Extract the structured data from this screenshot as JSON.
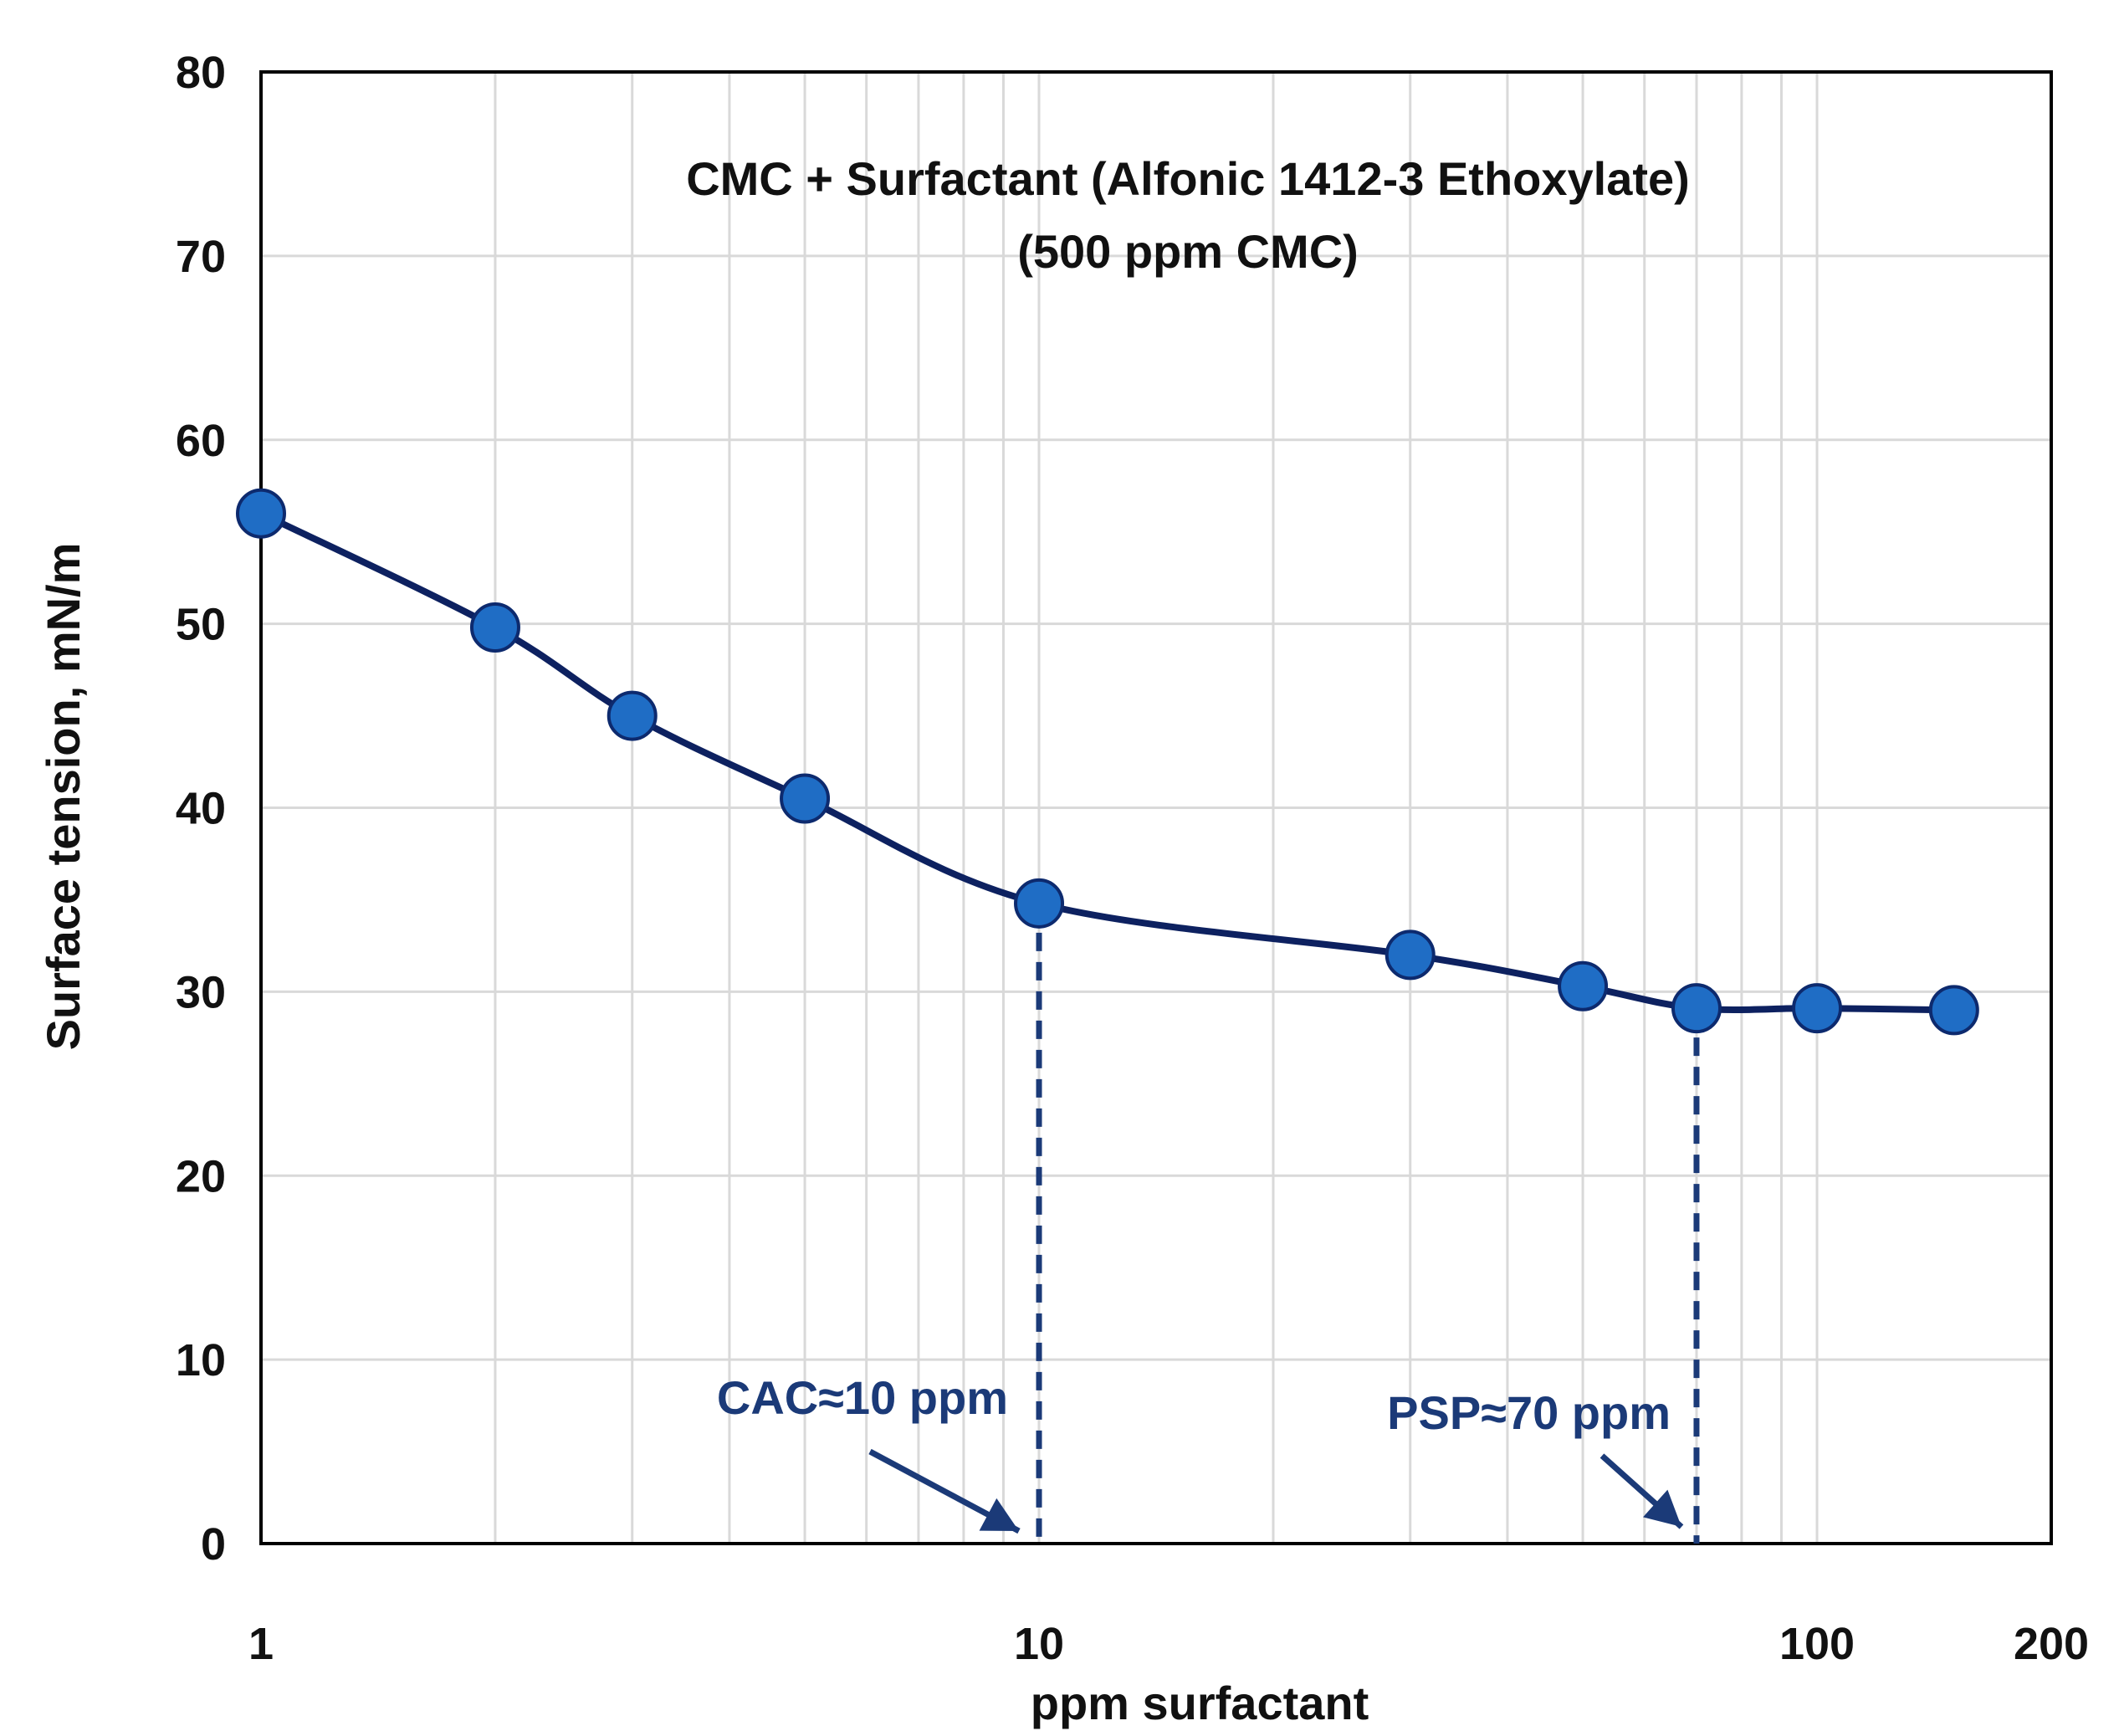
{
  "chart_data": {
    "type": "line",
    "title": "CMC + Surfactant (Alfonic 1412-3 Ethoxylate)",
    "subtitle": "(500 ppm CMC)",
    "xlabel": "ppm surfactant",
    "ylabel": "Surface tension, mN/m",
    "x_scale": "log",
    "xlim": [
      1,
      200
    ],
    "ylim": [
      0,
      80
    ],
    "grid": true,
    "x_ticks": [
      1,
      10,
      100,
      200
    ],
    "x_tick_labels": [
      "1",
      "10",
      "100",
      "200"
    ],
    "y_ticks": [
      0,
      10,
      20,
      30,
      40,
      50,
      60,
      70,
      80
    ],
    "y_tick_labels": [
      "0",
      "10",
      "20",
      "30",
      "40",
      "50",
      "60",
      "70",
      "80"
    ],
    "series": [
      {
        "name": "CMC + Surfactant",
        "x": [
          1,
          2,
          3,
          5,
          10,
          30,
          50,
          70,
          100,
          150
        ],
        "y": [
          56.0,
          49.8,
          45.0,
          40.5,
          34.8,
          32.0,
          30.3,
          29.1,
          29.1,
          29.0
        ]
      }
    ],
    "annotations": [
      {
        "label": "CAC≈10 ppm",
        "x": 10,
        "y": 34.8
      },
      {
        "label": "PSP≈70 ppm",
        "x": 70,
        "y": 29.1
      }
    ],
    "colors": {
      "line": "#0d2160",
      "marker_fill": "#1f6dc5",
      "marker_stroke": "#0d2a6e",
      "annotation": "#1b3a78",
      "grid": "#d9d9d9",
      "axis": "#000000"
    }
  }
}
